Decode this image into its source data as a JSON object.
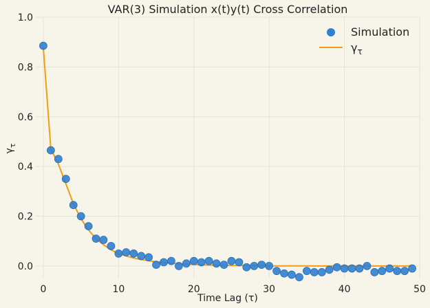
{
  "chart_data": {
    "type": "line",
    "title": "VAR(3) Simulation x(t)y(t) Cross Correlation",
    "xlabel": "Time Lag (τ)",
    "ylabel": "γτ",
    "xlim": [
      -1,
      50
    ],
    "ylim": [
      -0.05,
      1.0
    ],
    "x_ticks": [
      0,
      10,
      20,
      30,
      40,
      50
    ],
    "y_ticks": [
      0.0,
      0.2,
      0.4,
      0.6,
      0.8,
      1.0
    ],
    "x_tick_labels": [
      "0",
      "10",
      "20",
      "30",
      "40",
      "50"
    ],
    "y_tick_labels": [
      "0.0",
      "0.2",
      "0.4",
      "0.6",
      "0.8",
      "1.0"
    ],
    "grid": true,
    "legend_position": "top-right",
    "series": [
      {
        "name": "Simulation",
        "kind": "scatter",
        "color": "#2f80d0",
        "x": [
          0,
          1,
          2,
          3,
          4,
          5,
          6,
          7,
          8,
          9,
          10,
          11,
          12,
          13,
          14,
          15,
          16,
          17,
          18,
          19,
          20,
          21,
          22,
          23,
          24,
          25,
          26,
          27,
          28,
          29,
          30,
          31,
          32,
          33,
          34,
          35,
          36,
          37,
          38,
          39,
          40,
          41,
          42,
          43,
          44,
          45,
          46,
          47,
          48,
          49
        ],
        "y": [
          0.885,
          0.465,
          0.43,
          0.35,
          0.245,
          0.2,
          0.16,
          0.11,
          0.105,
          0.08,
          0.05,
          0.055,
          0.05,
          0.04,
          0.035,
          0.005,
          0.015,
          0.02,
          0.0,
          0.01,
          0.02,
          0.015,
          0.02,
          0.01,
          0.005,
          0.02,
          0.015,
          -0.005,
          0.0,
          0.005,
          0.0,
          -0.02,
          -0.03,
          -0.035,
          -0.045,
          -0.02,
          -0.025,
          -0.025,
          -0.015,
          -0.005,
          -0.01,
          -0.01,
          -0.01,
          0.0,
          -0.025,
          -0.02,
          -0.01,
          -0.02,
          -0.02,
          -0.01
        ]
      },
      {
        "name": "γτ",
        "kind": "line",
        "color": "#f39c12",
        "x": [
          0,
          1,
          2,
          3,
          4,
          5,
          6,
          7,
          8,
          9,
          10,
          11,
          12,
          13,
          14,
          15,
          16,
          17,
          18,
          19,
          20,
          21,
          22,
          23,
          24,
          25,
          26,
          27,
          28,
          29,
          30,
          31,
          32,
          33,
          34,
          35,
          36,
          37,
          38,
          39,
          40,
          41,
          42,
          43,
          44,
          45,
          46,
          47,
          48,
          49
        ],
        "y": [
          0.88,
          0.47,
          0.41,
          0.33,
          0.25,
          0.19,
          0.145,
          0.11,
          0.085,
          0.065,
          0.05,
          0.04,
          0.032,
          0.026,
          0.021,
          0.017,
          0.014,
          0.011,
          0.009,
          0.007,
          0.006,
          0.005,
          0.004,
          0.003,
          0.0025,
          0.002,
          0.0016,
          0.0013,
          0.001,
          0.0008,
          0.0006,
          0.0005,
          0.0004,
          0.0003,
          0.0002,
          0.0002,
          0.0001,
          0.0001,
          0.0001,
          0.0,
          0.0,
          0.0,
          0.0,
          0.0,
          0.0,
          0.0,
          0.0,
          0.0,
          0.0,
          0.0
        ]
      }
    ]
  }
}
